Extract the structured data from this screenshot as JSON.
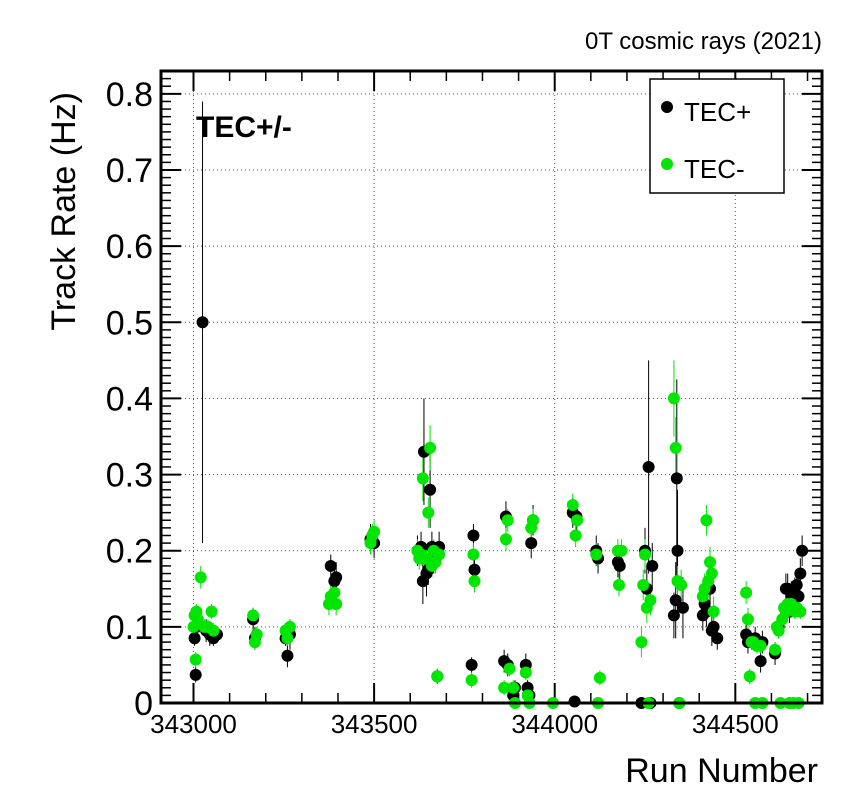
{
  "chart_data": {
    "type": "scatter",
    "title": "0T cosmic rays (2021)",
    "xlabel": "Run Number",
    "ylabel": "Track Rate (Hz)",
    "annotation": "TEC+/-",
    "xlim": [
      342910,
      344740
    ],
    "ylim": [
      0,
      0.83
    ],
    "x_ticks": [
      343000,
      343500,
      344000,
      344500
    ],
    "y_ticks": [
      0,
      0.1,
      0.2,
      0.3,
      0.4,
      0.5,
      0.6,
      0.7,
      0.8
    ],
    "grid": true,
    "legend_position": "top-right",
    "series": [
      {
        "name": "TEC+",
        "color": "#000000",
        "points": [
          [
            343003,
            0.085,
            0.01
          ],
          [
            343006,
            0.037,
            0.01
          ],
          [
            343008,
            0.1,
            0.01
          ],
          [
            343012,
            0.105,
            0.01
          ],
          [
            343025,
            0.5,
            0.29
          ],
          [
            343035,
            0.095,
            0.015
          ],
          [
            343045,
            0.09,
            0.015
          ],
          [
            343055,
            0.085,
            0.01
          ],
          [
            343065,
            0.09,
            0.01
          ],
          [
            343165,
            0.11,
            0.015
          ],
          [
            343170,
            0.085,
            0.015
          ],
          [
            343255,
            0.085,
            0.01
          ],
          [
            343260,
            0.062,
            0.015
          ],
          [
            343267,
            0.09,
            0.02
          ],
          [
            343380,
            0.18,
            0.015
          ],
          [
            343390,
            0.16,
            0.02
          ],
          [
            343395,
            0.165,
            0.02
          ],
          [
            343490,
            0.215,
            0.02
          ],
          [
            343500,
            0.21,
            0.02
          ],
          [
            343620,
            0.2,
            0.02
          ],
          [
            343630,
            0.205,
            0.02
          ],
          [
            343635,
            0.16,
            0.03
          ],
          [
            343638,
            0.33,
            0.07
          ],
          [
            343645,
            0.17,
            0.03
          ],
          [
            343650,
            0.175,
            0.02
          ],
          [
            343655,
            0.28,
            0.05
          ],
          [
            343660,
            0.205,
            0.02
          ],
          [
            343665,
            0.19,
            0.02
          ],
          [
            343675,
            0.035,
            0.01
          ],
          [
            343680,
            0.205,
            0.02
          ],
          [
            343770,
            0.05,
            0.01
          ],
          [
            343775,
            0.22,
            0.015
          ],
          [
            343778,
            0.175,
            0.02
          ],
          [
            343860,
            0.055,
            0.015
          ],
          [
            343865,
            0.245,
            0.02
          ],
          [
            343870,
            0.05,
            0.015
          ],
          [
            343885,
            0.01,
            0.01
          ],
          [
            343890,
            0.02,
            0.01
          ],
          [
            343920,
            0.05,
            0.015
          ],
          [
            343925,
            0.02,
            0.01
          ],
          [
            343930,
            0.01,
            0.01
          ],
          [
            343935,
            0.21,
            0.02
          ],
          [
            343940,
            0.24,
            0.02
          ],
          [
            344050,
            0.25,
            0.02
          ],
          [
            344055,
            0.002,
            0.002
          ],
          [
            344060,
            0.245,
            0.02
          ],
          [
            344115,
            0.2,
            0.02
          ],
          [
            344120,
            0.19,
            0.02
          ],
          [
            344175,
            0.185,
            0.02
          ],
          [
            344180,
            0.18,
            0.02
          ],
          [
            344240,
            0.0,
            0.0
          ],
          [
            344250,
            0.2,
            0.03
          ],
          [
            344255,
            0.15,
            0.03
          ],
          [
            344260,
            0.31,
            0.14
          ],
          [
            344265,
            0.0,
            0.0
          ],
          [
            344270,
            0.18,
            0.03
          ],
          [
            344330,
            0.115,
            0.03
          ],
          [
            344335,
            0.135,
            0.05
          ],
          [
            344338,
            0.295,
            0.13
          ],
          [
            344340,
            0.2,
            0.08
          ],
          [
            344345,
            0.0,
            0.0
          ],
          [
            344355,
            0.125,
            0.04
          ],
          [
            344410,
            0.115,
            0.02
          ],
          [
            344415,
            0.13,
            0.02
          ],
          [
            344420,
            0.12,
            0.02
          ],
          [
            344430,
            0.15,
            0.03
          ],
          [
            344435,
            0.095,
            0.02
          ],
          [
            344440,
            0.1,
            0.02
          ],
          [
            344450,
            0.085,
            0.015
          ],
          [
            344530,
            0.09,
            0.015
          ],
          [
            344535,
            0.08,
            0.015
          ],
          [
            344545,
            0.08,
            0.01
          ],
          [
            344555,
            0.085,
            0.015
          ],
          [
            344570,
            0.055,
            0.015
          ],
          [
            344575,
            0.08,
            0.015
          ],
          [
            344610,
            0.065,
            0.015
          ],
          [
            344620,
            0.1,
            0.015
          ],
          [
            344640,
            0.15,
            0.02
          ],
          [
            344645,
            0.15,
            0.02
          ],
          [
            344650,
            0.12,
            0.015
          ],
          [
            344655,
            0.14,
            0.02
          ],
          [
            344665,
            0.145,
            0.02
          ],
          [
            344670,
            0.155,
            0.02
          ],
          [
            344675,
            0.14,
            0.02
          ],
          [
            344680,
            0.17,
            0.02
          ],
          [
            344685,
            0.2,
            0.02
          ]
        ]
      },
      {
        "name": "TEC-",
        "color": "#00e600",
        "points": [
          [
            343000,
            0.1,
            0.01
          ],
          [
            343003,
            0.115,
            0.01
          ],
          [
            343006,
            0.057,
            0.01
          ],
          [
            343008,
            0.12,
            0.01
          ],
          [
            343012,
            0.11,
            0.01
          ],
          [
            343020,
            0.165,
            0.015
          ],
          [
            343030,
            0.1,
            0.01
          ],
          [
            343040,
            0.1,
            0.01
          ],
          [
            343050,
            0.12,
            0.01
          ],
          [
            343055,
            0.095,
            0.01
          ],
          [
            343165,
            0.115,
            0.01
          ],
          [
            343170,
            0.08,
            0.01
          ],
          [
            343175,
            0.09,
            0.01
          ],
          [
            343255,
            0.095,
            0.01
          ],
          [
            343260,
            0.085,
            0.01
          ],
          [
            343267,
            0.1,
            0.01
          ],
          [
            343375,
            0.13,
            0.015
          ],
          [
            343380,
            0.14,
            0.015
          ],
          [
            343390,
            0.145,
            0.015
          ],
          [
            343395,
            0.13,
            0.015
          ],
          [
            343490,
            0.21,
            0.015
          ],
          [
            343495,
            0.22,
            0.015
          ],
          [
            343500,
            0.225,
            0.015
          ],
          [
            343620,
            0.2,
            0.015
          ],
          [
            343625,
            0.19,
            0.015
          ],
          [
            343630,
            0.195,
            0.015
          ],
          [
            343635,
            0.295,
            0.03
          ],
          [
            343640,
            0.19,
            0.015
          ],
          [
            343645,
            0.19,
            0.015
          ],
          [
            343650,
            0.25,
            0.02
          ],
          [
            343655,
            0.335,
            0.03
          ],
          [
            343660,
            0.18,
            0.015
          ],
          [
            343665,
            0.2,
            0.015
          ],
          [
            343670,
            0.185,
            0.015
          ],
          [
            343675,
            0.035,
            0.01
          ],
          [
            343680,
            0.195,
            0.015
          ],
          [
            343770,
            0.03,
            0.01
          ],
          [
            343775,
            0.195,
            0.015
          ],
          [
            343778,
            0.16,
            0.015
          ],
          [
            343860,
            0.02,
            0.01
          ],
          [
            343865,
            0.215,
            0.015
          ],
          [
            343870,
            0.24,
            0.015
          ],
          [
            343875,
            0.045,
            0.01
          ],
          [
            343885,
            0.02,
            0.01
          ],
          [
            343890,
            0.0,
            0.0
          ],
          [
            343920,
            0.04,
            0.01
          ],
          [
            343925,
            0.01,
            0.01
          ],
          [
            343930,
            0.0,
            0.0
          ],
          [
            343935,
            0.23,
            0.015
          ],
          [
            343940,
            0.24,
            0.015
          ],
          [
            343995,
            0.0,
            0.0
          ],
          [
            344050,
            0.26,
            0.015
          ],
          [
            344058,
            0.22,
            0.015
          ],
          [
            344062,
            0.24,
            0.015
          ],
          [
            344115,
            0.195,
            0.015
          ],
          [
            344120,
            0.0,
            0.0
          ],
          [
            344125,
            0.033,
            0.01
          ],
          [
            344175,
            0.2,
            0.015
          ],
          [
            344178,
            0.155,
            0.015
          ],
          [
            344185,
            0.2,
            0.015
          ],
          [
            344240,
            0.08,
            0.02
          ],
          [
            344245,
            0.155,
            0.02
          ],
          [
            344250,
            0.195,
            0.02
          ],
          [
            344255,
            0.125,
            0.02
          ],
          [
            344260,
            0.0,
            0.0
          ],
          [
            344265,
            0.135,
            0.02
          ],
          [
            344330,
            0.4,
            0.05
          ],
          [
            344335,
            0.335,
            0.04
          ],
          [
            344340,
            0.16,
            0.02
          ],
          [
            344345,
            0.0,
            0.0
          ],
          [
            344350,
            0.155,
            0.02
          ],
          [
            344410,
            0.14,
            0.02
          ],
          [
            344415,
            0.15,
            0.02
          ],
          [
            344420,
            0.24,
            0.02
          ],
          [
            344425,
            0.16,
            0.02
          ],
          [
            344430,
            0.185,
            0.02
          ],
          [
            344435,
            0.17,
            0.02
          ],
          [
            344440,
            0.12,
            0.02
          ],
          [
            344530,
            0.145,
            0.015
          ],
          [
            344535,
            0.11,
            0.015
          ],
          [
            344540,
            0.035,
            0.01
          ],
          [
            344545,
            0.08,
            0.01
          ],
          [
            344550,
            0.08,
            0.01
          ],
          [
            344555,
            0.0,
            0.0
          ],
          [
            344560,
            0.075,
            0.01
          ],
          [
            344570,
            0.075,
            0.01
          ],
          [
            344575,
            0.0,
            0.0
          ],
          [
            344610,
            0.07,
            0.01
          ],
          [
            344615,
            0.1,
            0.01
          ],
          [
            344620,
            0.095,
            0.01
          ],
          [
            344625,
            0.0,
            0.0
          ],
          [
            344630,
            0.11,
            0.01
          ],
          [
            344635,
            0.125,
            0.01
          ],
          [
            344640,
            0.12,
            0.01
          ],
          [
            344645,
            0.13,
            0.01
          ],
          [
            344650,
            0.0,
            0.0
          ],
          [
            344655,
            0.13,
            0.01
          ],
          [
            344660,
            0.0,
            0.0
          ],
          [
            344665,
            0.12,
            0.01
          ],
          [
            344670,
            0.125,
            0.01
          ],
          [
            344675,
            0.0,
            0.0
          ],
          [
            344680,
            0.12,
            0.01
          ]
        ]
      }
    ]
  }
}
